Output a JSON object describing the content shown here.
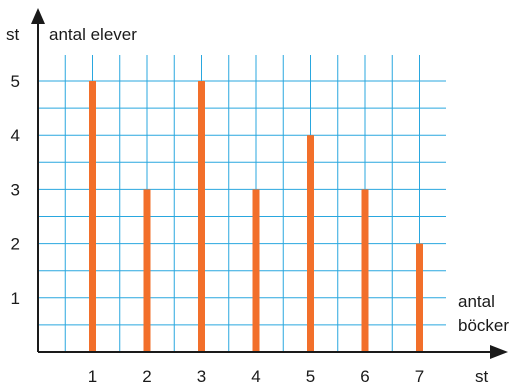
{
  "chart_data": {
    "type": "bar",
    "categories": [
      "1",
      "2",
      "3",
      "4",
      "5",
      "6",
      "7"
    ],
    "values": [
      5,
      3,
      5,
      3,
      4,
      3,
      2
    ],
    "y_ticks": [
      "1",
      "2",
      "3",
      "4",
      "5"
    ],
    "ylabel_unit": "st",
    "ylabel": "antal elever",
    "xlabel_line1": "antal",
    "xlabel_line2": "böcker",
    "xlabel_unit": "st",
    "ylim": [
      0,
      5.5
    ],
    "xlim": [
      0,
      7.5
    ],
    "grid": true,
    "colors": {
      "bar": "#f26f2a",
      "grid": "#29a7df",
      "axis": "#1a1a1a"
    }
  }
}
